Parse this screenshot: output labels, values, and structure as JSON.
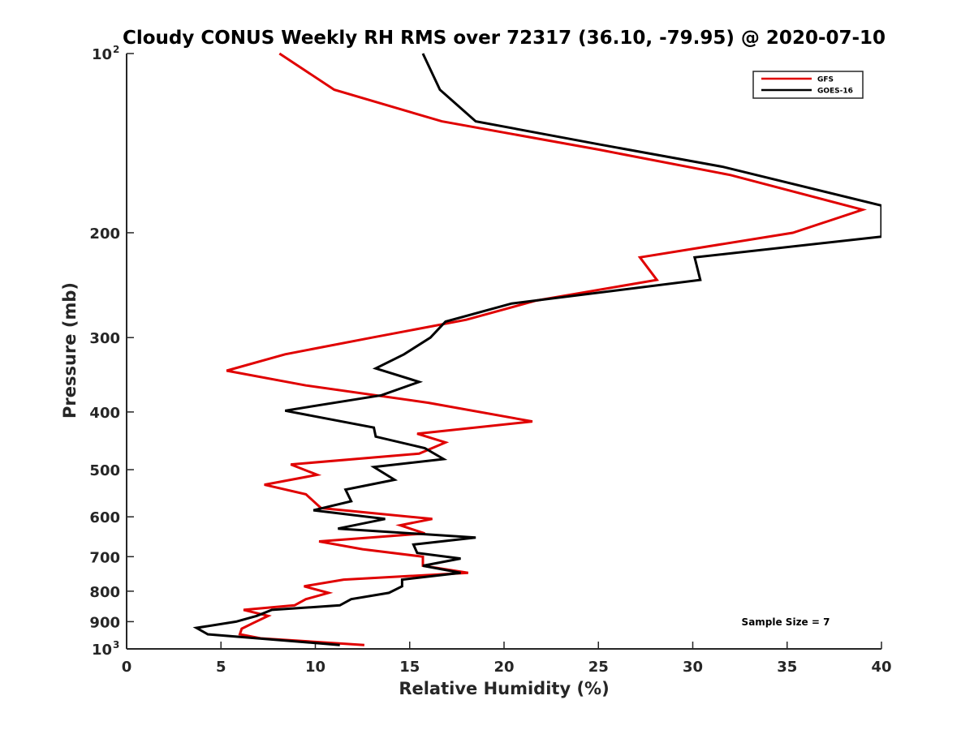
{
  "chart_data": {
    "type": "line",
    "title": "Cloudy CONUS Weekly RH RMS over 72317 (36.10, -79.95) @ 2020-07-10",
    "xlabel": "Relative Humidity (%)",
    "ylabel": "Pressure (mb)",
    "xlim": [
      0,
      40
    ],
    "ylim": [
      100,
      1000
    ],
    "yscale": "log",
    "y_reversed": true,
    "grid": false,
    "legend_position": "top-right",
    "x_ticks": [
      "0",
      "5",
      "10",
      "15",
      "20",
      "25",
      "30",
      "35",
      "40"
    ],
    "y_ticks": [
      {
        "value": 100,
        "base": "10",
        "exp": "2"
      },
      {
        "value": 200,
        "label": "200"
      },
      {
        "value": 300,
        "label": "300"
      },
      {
        "value": 400,
        "label": "400"
      },
      {
        "value": 500,
        "label": "500"
      },
      {
        "value": 600,
        "label": "600"
      },
      {
        "value": 700,
        "label": "700"
      },
      {
        "value": 800,
        "label": "800"
      },
      {
        "value": 900,
        "label": "900"
      },
      {
        "value": 1000,
        "base": "10",
        "exp": "3"
      }
    ],
    "series": [
      {
        "name": "GFS",
        "color": "#e00000",
        "points": [
          [
            8.1,
            100
          ],
          [
            11.0,
            115
          ],
          [
            16.7,
            130
          ],
          [
            25.0,
            145
          ],
          [
            32.0,
            160
          ],
          [
            39.0,
            183
          ],
          [
            35.3,
            200
          ],
          [
            27.2,
            220
          ],
          [
            28.1,
            240
          ],
          [
            21.7,
            260
          ],
          [
            18.0,
            280
          ],
          [
            13.0,
            300
          ],
          [
            8.4,
            320
          ],
          [
            5.3,
            341
          ],
          [
            9.5,
            361
          ],
          [
            16.0,
            386
          ],
          [
            21.5,
            415
          ],
          [
            15.4,
            435
          ],
          [
            16.9,
            450
          ],
          [
            15.5,
            470
          ],
          [
            8.7,
            490
          ],
          [
            10.1,
            510
          ],
          [
            7.3,
            530
          ],
          [
            9.5,
            550
          ],
          [
            10.3,
            580
          ],
          [
            16.2,
            605
          ],
          [
            14.5,
            620
          ],
          [
            15.8,
            640
          ],
          [
            10.2,
            660
          ],
          [
            12.5,
            680
          ],
          [
            15.7,
            700
          ],
          [
            15.7,
            725
          ],
          [
            18.1,
            745
          ],
          [
            11.5,
            765
          ],
          [
            9.4,
            785
          ],
          [
            10.7,
            805
          ],
          [
            9.5,
            825
          ],
          [
            8.9,
            845
          ],
          [
            6.2,
            860
          ],
          [
            7.5,
            880
          ],
          [
            6.7,
            905
          ],
          [
            6.1,
            925
          ],
          [
            6.0,
            945
          ],
          [
            7.1,
            960
          ],
          [
            12.6,
            985
          ]
        ]
      },
      {
        "name": "GOES-16",
        "color": "#000000",
        "points": [
          [
            15.7,
            100
          ],
          [
            16.6,
            115
          ],
          [
            18.5,
            130
          ],
          [
            25.0,
            142
          ],
          [
            31.6,
            155
          ],
          [
            40.0,
            180
          ],
          [
            40.0,
            203
          ],
          [
            30.1,
            220
          ],
          [
            30.4,
            240
          ],
          [
            20.4,
            263
          ],
          [
            16.9,
            282
          ],
          [
            16.1,
            300
          ],
          [
            14.7,
            320
          ],
          [
            13.2,
            338
          ],
          [
            15.5,
            356
          ],
          [
            13.5,
            375
          ],
          [
            8.4,
            398
          ],
          [
            13.1,
            425
          ],
          [
            13.2,
            440
          ],
          [
            15.8,
            460
          ],
          [
            16.8,
            480
          ],
          [
            13.1,
            495
          ],
          [
            14.2,
            520
          ],
          [
            11.6,
            540
          ],
          [
            11.9,
            565
          ],
          [
            9.9,
            585
          ],
          [
            13.7,
            605
          ],
          [
            11.2,
            628
          ],
          [
            18.5,
            650
          ],
          [
            15.2,
            668
          ],
          [
            15.4,
            690
          ],
          [
            17.7,
            705
          ],
          [
            15.7,
            725
          ],
          [
            17.7,
            745
          ],
          [
            14.6,
            765
          ],
          [
            14.6,
            785
          ],
          [
            13.9,
            805
          ],
          [
            11.9,
            825
          ],
          [
            11.3,
            845
          ],
          [
            7.7,
            860
          ],
          [
            6.9,
            880
          ],
          [
            5.8,
            900
          ],
          [
            3.7,
            922
          ],
          [
            4.3,
            945
          ],
          [
            11.3,
            985
          ]
        ]
      }
    ],
    "annotations": [
      "Sample Size = 7"
    ]
  }
}
